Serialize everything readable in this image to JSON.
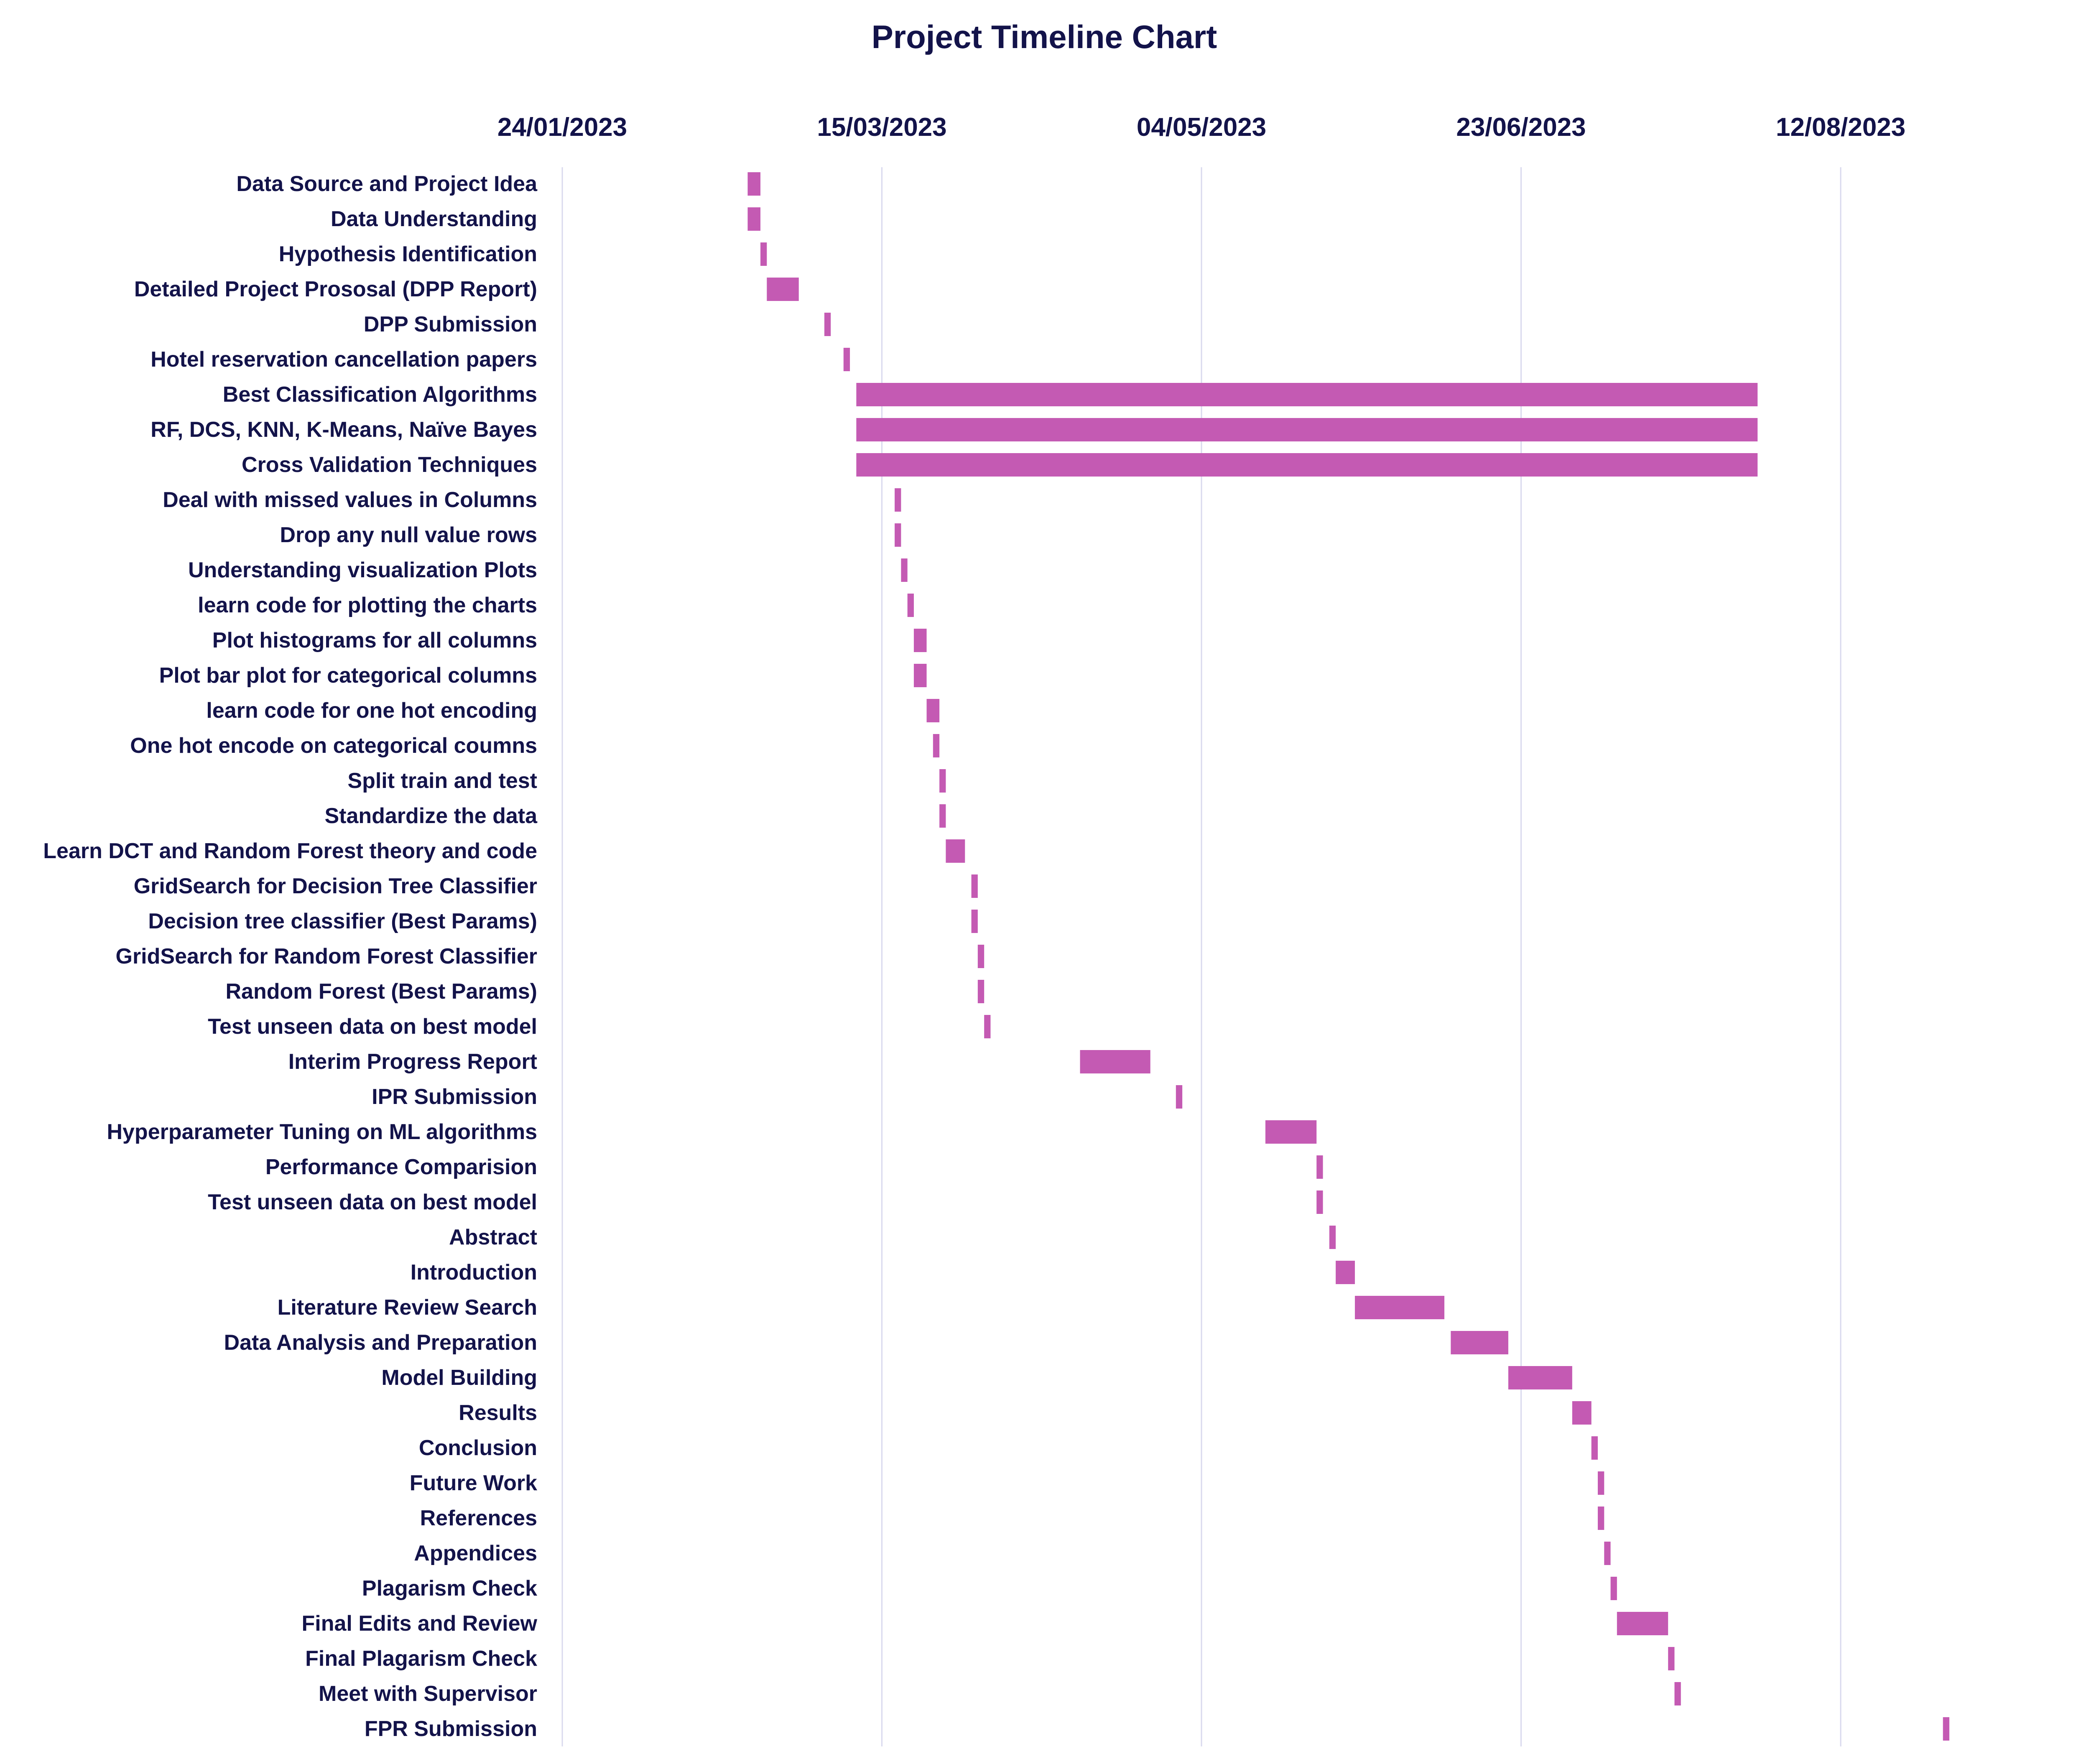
{
  "chart_data": {
    "type": "gantt",
    "title": "Project Timeline Chart",
    "x_ticks": [
      "24/01/2023",
      "15/03/2023",
      "04/05/2023",
      "23/06/2023",
      "12/08/2023"
    ],
    "x_axis_position": "top",
    "grid": true,
    "colors": {
      "bar": "#c45ab3",
      "text": "#13134a",
      "grid": "#d9d9ee"
    },
    "tasks": [
      {
        "label": "Data Source and Project Idea",
        "start": "2023-02-22",
        "end": "2023-02-24"
      },
      {
        "label": "Data Understanding",
        "start": "2023-02-22",
        "end": "2023-02-24"
      },
      {
        "label": "Hypothesis Identification",
        "start": "2023-02-24",
        "end": "2023-02-25"
      },
      {
        "label": "Detailed Project Prososal (DPP Report)",
        "start": "2023-02-25",
        "end": "2023-03-02"
      },
      {
        "label": "DPP Submission",
        "start": "2023-03-06",
        "end": "2023-03-07"
      },
      {
        "label": "Hotel reservation cancellation papers",
        "start": "2023-03-09",
        "end": "2023-03-10"
      },
      {
        "label": "Best Classification Algorithms",
        "start": "2023-03-11",
        "end": "2023-07-30"
      },
      {
        "label": "RF, DCS, KNN, K-Means, Naïve Bayes",
        "start": "2023-03-11",
        "end": "2023-07-30"
      },
      {
        "label": "Cross Validation Techniques",
        "start": "2023-03-11",
        "end": "2023-07-30"
      },
      {
        "label": "Deal with missed values in Columns",
        "start": "2023-03-17",
        "end": "2023-03-18"
      },
      {
        "label": "Drop any null value rows",
        "start": "2023-03-17",
        "end": "2023-03-18"
      },
      {
        "label": "Understanding visualization Plots",
        "start": "2023-03-18",
        "end": "2023-03-19"
      },
      {
        "label": "learn code for plotting the charts",
        "start": "2023-03-19",
        "end": "2023-03-20"
      },
      {
        "label": "Plot histograms for all columns",
        "start": "2023-03-20",
        "end": "2023-03-22"
      },
      {
        "label": "Plot bar plot for categorical columns",
        "start": "2023-03-20",
        "end": "2023-03-22"
      },
      {
        "label": "learn code for one hot encoding",
        "start": "2023-03-22",
        "end": "2023-03-24"
      },
      {
        "label": "One hot encode on categorical coumns",
        "start": "2023-03-23",
        "end": "2023-03-24"
      },
      {
        "label": "Split train and test",
        "start": "2023-03-24",
        "end": "2023-03-25"
      },
      {
        "label": "Standardize the data",
        "start": "2023-03-24",
        "end": "2023-03-25"
      },
      {
        "label": "Learn DCT and Random Forest theory and code",
        "start": "2023-03-25",
        "end": "2023-03-28"
      },
      {
        "label": "GridSearch for Decision Tree Classifier",
        "start": "2023-03-29",
        "end": "2023-03-30"
      },
      {
        "label": "Decision tree classifier (Best Params)",
        "start": "2023-03-29",
        "end": "2023-03-30"
      },
      {
        "label": "GridSearch for Random Forest Classifier",
        "start": "2023-03-30",
        "end": "2023-03-31"
      },
      {
        "label": "Random Forest (Best Params)",
        "start": "2023-03-30",
        "end": "2023-03-31"
      },
      {
        "label": "Test unseen data on best model",
        "start": "2023-03-31",
        "end": "2023-04-01"
      },
      {
        "label": "Interim Progress Report",
        "start": "2023-04-15",
        "end": "2023-04-26"
      },
      {
        "label": "IPR Submission",
        "start": "2023-04-30",
        "end": "2023-05-01"
      },
      {
        "label": "Hyperparameter Tuning on ML algorithms",
        "start": "2023-05-14",
        "end": "2023-05-22"
      },
      {
        "label": "Performance Comparision",
        "start": "2023-05-22",
        "end": "2023-05-23"
      },
      {
        "label": "Test unseen data on best model",
        "start": "2023-05-22",
        "end": "2023-05-23"
      },
      {
        "label": "Abstract",
        "start": "2023-05-24",
        "end": "2023-05-25"
      },
      {
        "label": "Introduction",
        "start": "2023-05-25",
        "end": "2023-05-28"
      },
      {
        "label": "Literature Review Search",
        "start": "2023-05-28",
        "end": "2023-06-11"
      },
      {
        "label": "Data Analysis and Preparation",
        "start": "2023-06-12",
        "end": "2023-06-21"
      },
      {
        "label": "Model Building",
        "start": "2023-06-21",
        "end": "2023-07-01"
      },
      {
        "label": "Results",
        "start": "2023-07-01",
        "end": "2023-07-04"
      },
      {
        "label": "Conclusion",
        "start": "2023-07-04",
        "end": "2023-07-05"
      },
      {
        "label": "Future Work",
        "start": "2023-07-05",
        "end": "2023-07-06"
      },
      {
        "label": "References",
        "start": "2023-07-05",
        "end": "2023-07-06"
      },
      {
        "label": "Appendices",
        "start": "2023-07-06",
        "end": "2023-07-07"
      },
      {
        "label": "Plagarism Check",
        "start": "2023-07-07",
        "end": "2023-07-08"
      },
      {
        "label": "Final Edits and Review",
        "start": "2023-07-08",
        "end": "2023-07-16"
      },
      {
        "label": "Final Plagarism Check",
        "start": "2023-07-16",
        "end": "2023-07-17"
      },
      {
        "label": "Meet with Supervisor",
        "start": "2023-07-17",
        "end": "2023-07-18"
      },
      {
        "label": "FPR Submission",
        "start": "2023-08-28",
        "end": "2023-08-29"
      }
    ]
  }
}
